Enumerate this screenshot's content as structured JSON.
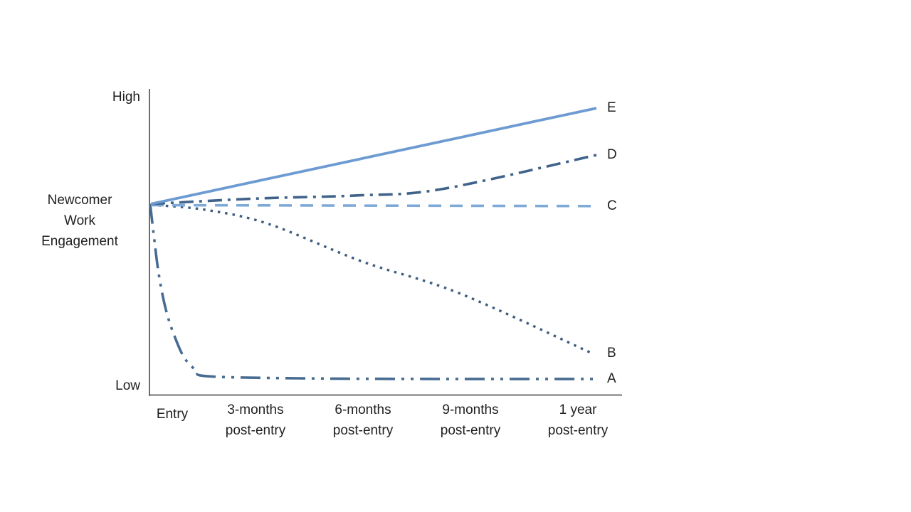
{
  "page": {
    "background": "#ffffff",
    "text_color": "#1f1f1f"
  },
  "chart_data": {
    "type": "line",
    "title": "",
    "ylabel": "Newcomer Work Engagement",
    "y_axis": {
      "top_label": "High",
      "bottom_label": "Low",
      "scale": "qualitative, Low (0) to High (1)"
    },
    "axis_color": "#3f3f3f",
    "grid": "off",
    "legend_position": "labels at right end of each line",
    "x_ticks": [
      {
        "label": "Entry",
        "pos": 0.048
      },
      {
        "label": "3-months\npost-entry",
        "pos": 0.224
      },
      {
        "label": "6-months\npost-entry",
        "pos": 0.451
      },
      {
        "label": "9-months\npost-entry",
        "pos": 0.677
      },
      {
        "label": "1 year\npost-entry",
        "pos": 0.904
      }
    ],
    "series": [
      {
        "label": "A",
        "style": "dash-dot-dot",
        "color": "#476b91",
        "width": 3.6,
        "smooth": true,
        "points": [
          [
            0.0015,
            0.631
          ],
          [
            0.009,
            0.529
          ],
          [
            0.0195,
            0.4
          ],
          [
            0.0345,
            0.282
          ],
          [
            0.0525,
            0.195
          ],
          [
            0.0735,
            0.122
          ],
          [
            0.099,
            0.08
          ],
          [
            0.123,
            0.061
          ],
          [
            0.315,
            0.054
          ],
          [
            0.616,
            0.052
          ],
          [
            0.943,
            0.052
          ]
        ]
      },
      {
        "label": "B",
        "style": "dot",
        "color": "#3d5d80",
        "width": 3.4,
        "smooth": true,
        "points": [
          [
            0.003,
            0.628
          ],
          [
            0.117,
            0.612
          ],
          [
            0.251,
            0.565
          ],
          [
            0.45,
            0.44
          ],
          [
            0.653,
            0.336
          ],
          [
            0.935,
            0.136
          ]
        ]
      },
      {
        "label": "C",
        "style": "dash",
        "color": "#7faad8",
        "width": 3.6,
        "smooth": false,
        "points": [
          [
            0.003,
            0.627
          ],
          [
            0.94,
            0.624
          ]
        ]
      },
      {
        "label": "D",
        "style": "dash-dot",
        "color": "#40638a",
        "width": 3.6,
        "smooth": true,
        "points": [
          [
            0.003,
            0.631
          ],
          [
            0.225,
            0.649
          ],
          [
            0.435,
            0.659
          ],
          [
            0.616,
            0.68
          ],
          [
            0.943,
            0.793
          ]
        ]
      },
      {
        "label": "E",
        "style": "solid",
        "color": "#6d9bd1",
        "width": 3.8,
        "smooth": false,
        "points": [
          [
            0.003,
            0.631
          ],
          [
            0.943,
            0.948
          ]
        ]
      }
    ]
  }
}
